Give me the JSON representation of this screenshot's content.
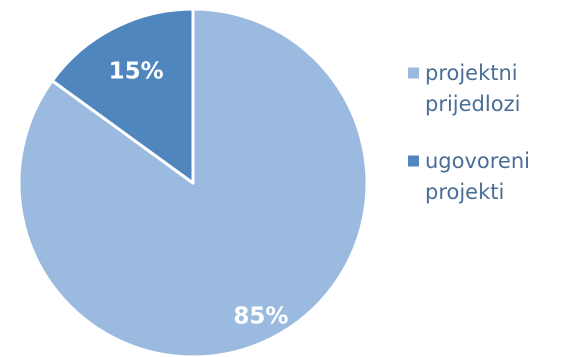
{
  "chart_data": {
    "type": "pie",
    "title": "",
    "series": [
      {
        "name": "projektni prijedlozi",
        "value": 85,
        "label": "85%",
        "color": "#9bbae0"
      },
      {
        "name": "ugovoreni projekti",
        "value": 15,
        "label": "15%",
        "color": "#4f86be"
      }
    ],
    "legend": {
      "position": "right",
      "entries": [
        {
          "lines": [
            "projektni",
            "prijedlozi"
          ],
          "color": "#9bbae0"
        },
        {
          "lines": [
            "ugovoreni",
            "projekti"
          ],
          "color": "#4f86be"
        }
      ]
    }
  },
  "colors": {
    "label_text": "#ffffff",
    "legend_text": "#4a6f96",
    "slice_border": "#ffffff"
  }
}
